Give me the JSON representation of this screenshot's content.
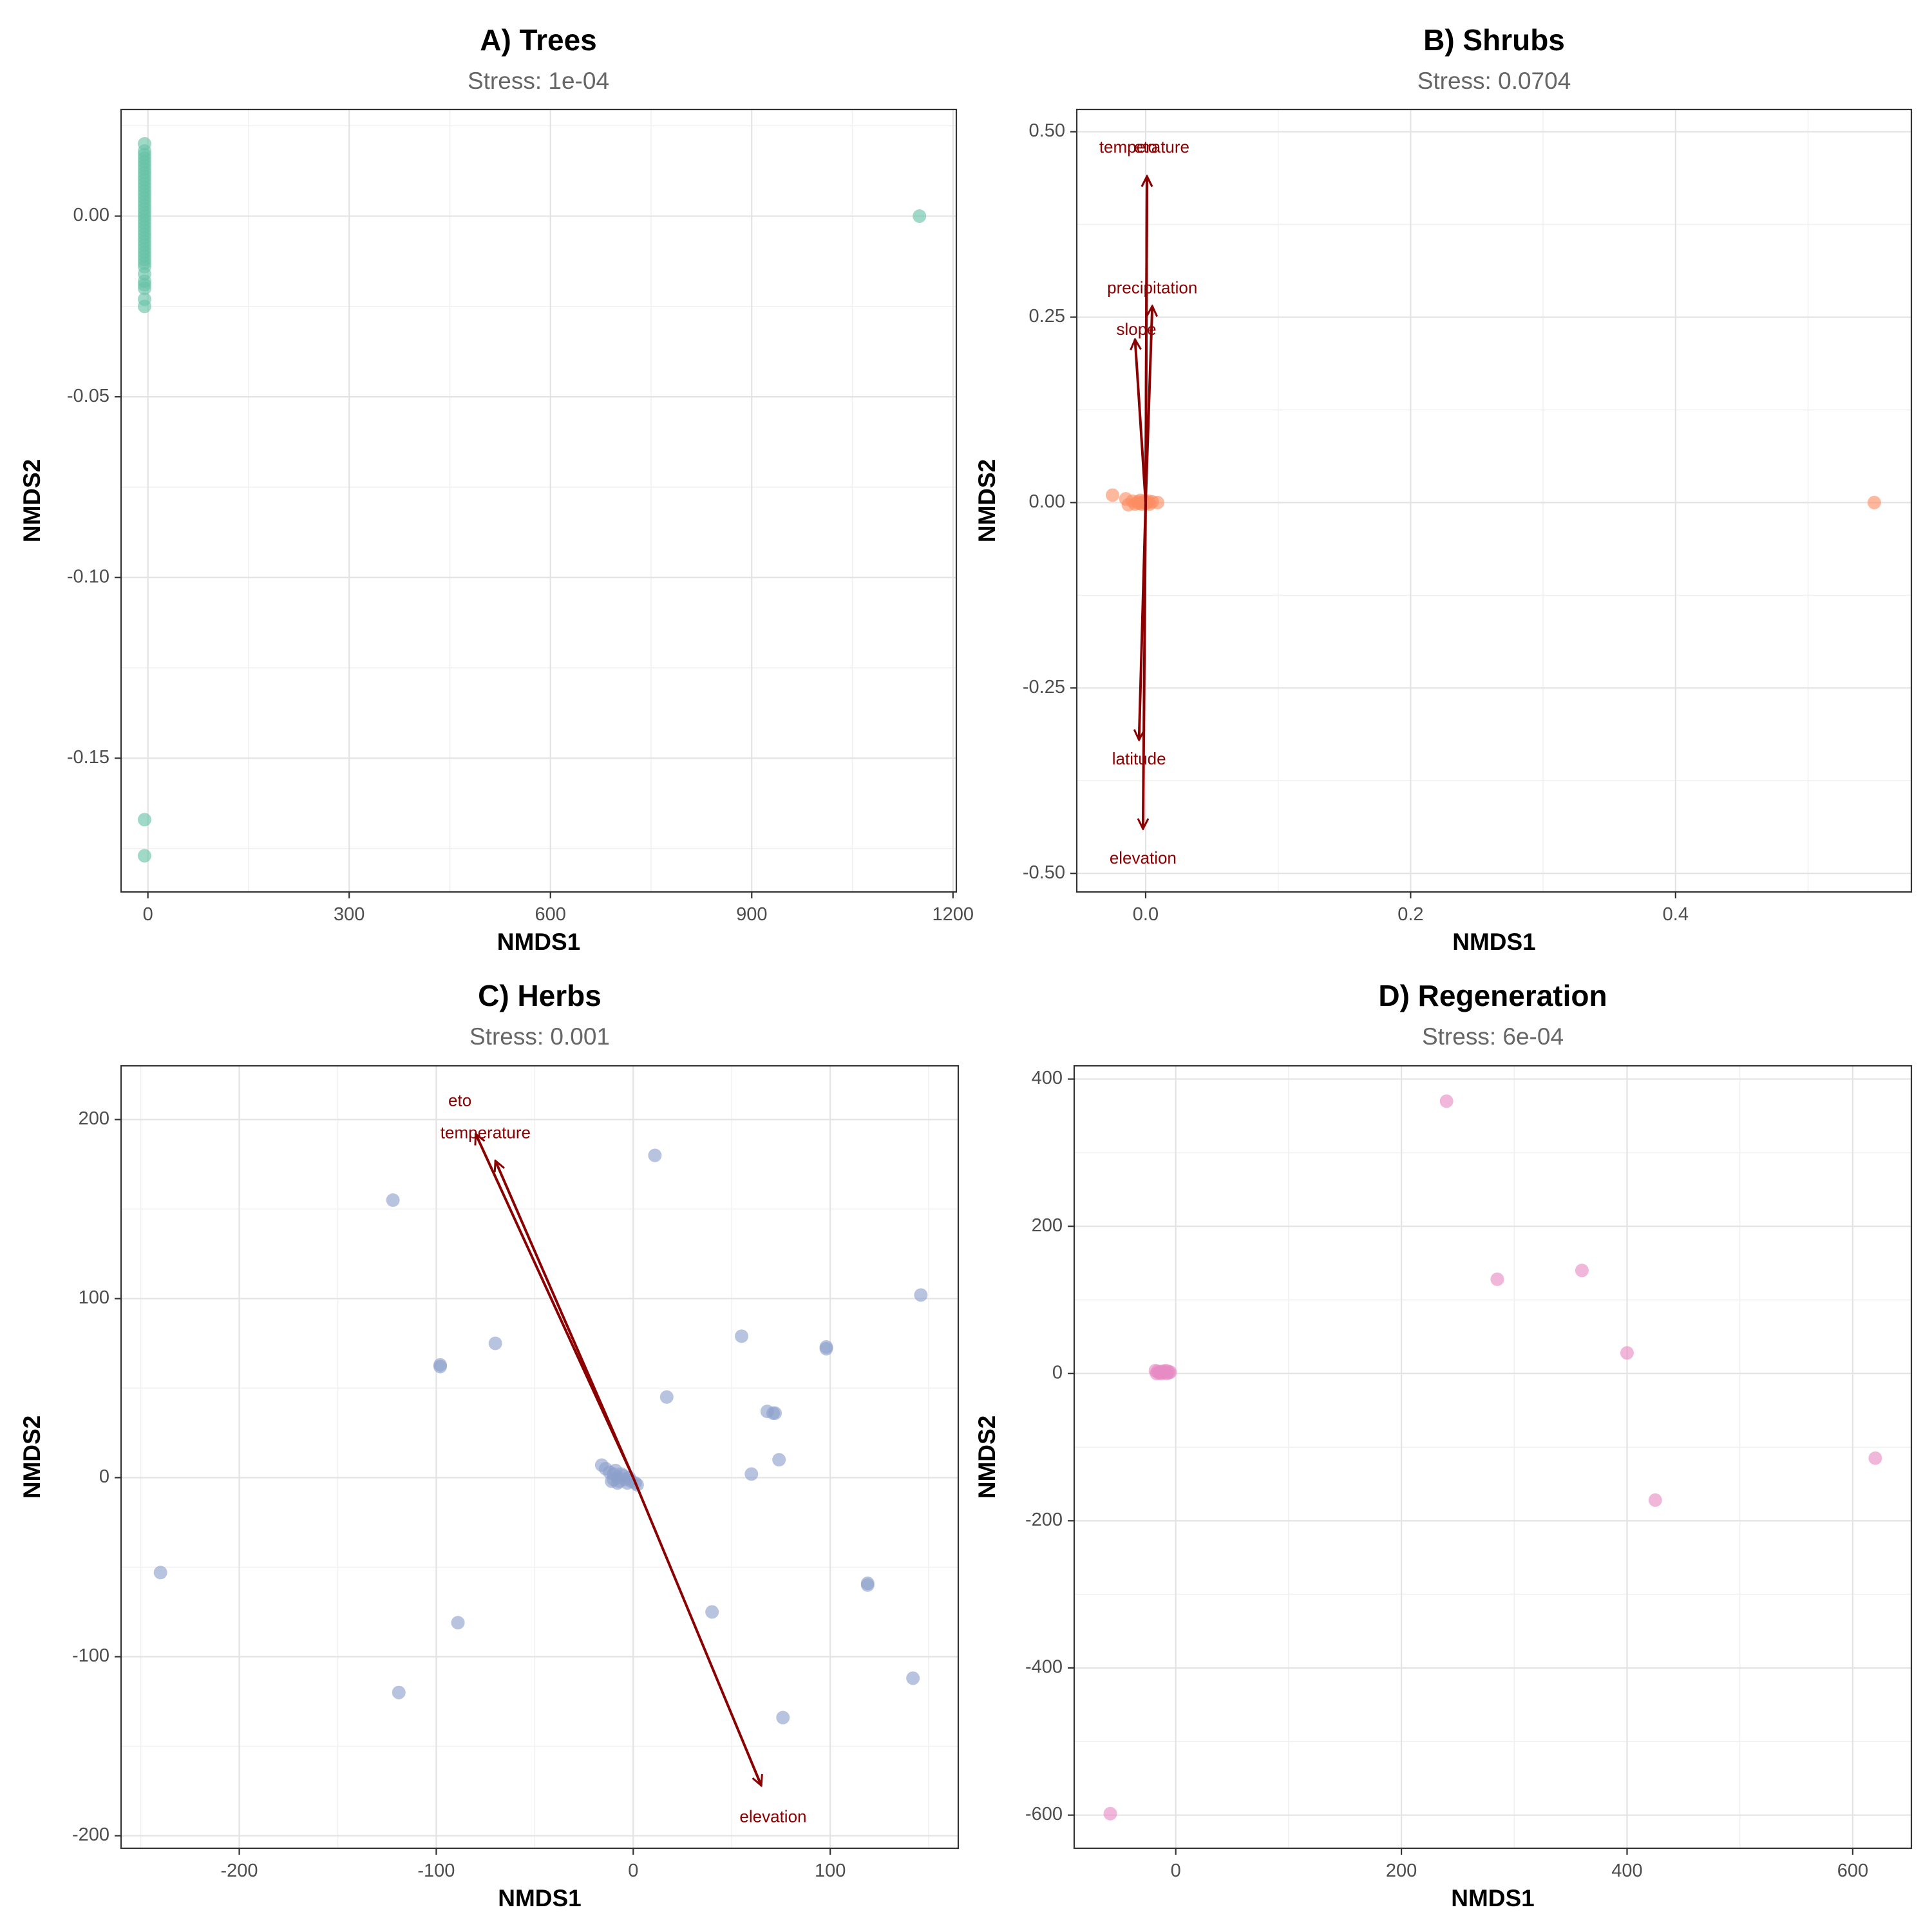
{
  "figure": {
    "panel_order": [
      "A",
      "B",
      "C",
      "D"
    ]
  },
  "chart_data": [
    {
      "type": "scatter",
      "id": "A",
      "title": "A) Trees",
      "subtitle": "Stress: 1e-04",
      "xlabel": "NMDS1",
      "ylabel": "NMDS2",
      "xlim": [
        -40,
        1205
      ],
      "ylim": [
        -0.187,
        0.0295
      ],
      "xticks": [
        0,
        300,
        600,
        900,
        1200
      ],
      "xtick_labels": [
        "0",
        "300",
        "600",
        "900",
        "1200"
      ],
      "yticks": [
        0.0,
        -0.05,
        -0.1,
        -0.15
      ],
      "ytick_labels": [
        "0.00",
        "-0.05",
        "-0.10",
        "-0.15"
      ],
      "point_color": "#66c2a5",
      "points": [
        [
          -5,
          0.02
        ],
        [
          -5,
          0.018
        ],
        [
          -5,
          0.017
        ],
        [
          -5,
          0.016
        ],
        [
          -5,
          0.015
        ],
        [
          -5,
          0.014
        ],
        [
          -5,
          0.013
        ],
        [
          -5,
          0.012
        ],
        [
          -5,
          0.011
        ],
        [
          -5,
          0.01
        ],
        [
          -5,
          0.009
        ],
        [
          -5,
          0.008
        ],
        [
          -5,
          0.007
        ],
        [
          -5,
          0.006
        ],
        [
          -5,
          0.005
        ],
        [
          -5,
          0.004
        ],
        [
          -5,
          0.003
        ],
        [
          -5,
          0.002
        ],
        [
          -5,
          0.001
        ],
        [
          -5,
          0.0
        ],
        [
          -5,
          -0.001
        ],
        [
          -5,
          -0.002
        ],
        [
          -5,
          -0.003
        ],
        [
          -5,
          -0.004
        ],
        [
          -5,
          -0.005
        ],
        [
          -5,
          -0.006
        ],
        [
          -5,
          -0.007
        ],
        [
          -5,
          -0.008
        ],
        [
          -5,
          -0.009
        ],
        [
          -5,
          -0.01
        ],
        [
          -5,
          -0.011
        ],
        [
          -5,
          -0.012
        ],
        [
          -5,
          -0.013
        ],
        [
          -5,
          -0.014
        ],
        [
          -5,
          -0.016
        ],
        [
          -5,
          -0.018
        ],
        [
          -5,
          -0.019
        ],
        [
          -5,
          -0.02
        ],
        [
          -5,
          -0.023
        ],
        [
          -5,
          -0.025
        ],
        [
          -5,
          -0.167
        ],
        [
          -5,
          -0.177
        ],
        [
          1150,
          0.0
        ]
      ],
      "vectors": []
    },
    {
      "type": "scatter",
      "id": "B",
      "title": "B) Shrubs",
      "subtitle": "Stress: 0.0704",
      "xlabel": "NMDS1",
      "ylabel": "NMDS2",
      "xlim": [
        -0.052,
        0.578
      ],
      "ylim": [
        -0.525,
        0.53
      ],
      "xticks": [
        0.0,
        0.2,
        0.4
      ],
      "xtick_labels": [
        "0.0",
        "0.2",
        "0.4"
      ],
      "yticks": [
        0.5,
        0.25,
        0.0,
        -0.25,
        -0.5
      ],
      "ytick_labels": [
        "0.50",
        "0.25",
        "0.00",
        "-0.25",
        "-0.50"
      ],
      "point_color": "#fc8d62",
      "points": [
        [
          -0.025,
          0.01
        ],
        [
          -0.015,
          0.005
        ],
        [
          -0.013,
          -0.003
        ],
        [
          -0.01,
          0.002
        ],
        [
          -0.008,
          -0.002
        ],
        [
          -0.006,
          0.001
        ],
        [
          -0.005,
          -0.001
        ],
        [
          -0.004,
          0.003
        ],
        [
          -0.003,
          -0.002
        ],
        [
          -0.002,
          0.0
        ],
        [
          -0.001,
          0.002
        ],
        [
          0.0,
          -0.001
        ],
        [
          0.001,
          0.0
        ],
        [
          0.002,
          0.002
        ],
        [
          0.003,
          -0.002
        ],
        [
          0.005,
          0.001
        ],
        [
          0.009,
          0.0
        ],
        [
          0.55,
          0.0
        ]
      ],
      "vector_color": "#8b0000",
      "vectors": [
        {
          "label": "eto",
          "x": 0.001,
          "y": 0.44,
          "lx": 0.0,
          "ly": 0.478
        },
        {
          "label": "temperature",
          "x": 0.001,
          "y": 0.44,
          "lx": -0.001,
          "ly": 0.478
        },
        {
          "label": "precipitation",
          "x": 0.005,
          "y": 0.265,
          "lx": 0.005,
          "ly": 0.288
        },
        {
          "label": "slope",
          "x": -0.008,
          "y": 0.22,
          "lx": -0.007,
          "ly": 0.232
        },
        {
          "label": "latitude",
          "x": -0.005,
          "y": -0.32,
          "lx": -0.005,
          "ly": -0.347
        },
        {
          "label": "elevation",
          "x": -0.002,
          "y": -0.44,
          "lx": -0.002,
          "ly": -0.481
        }
      ]
    },
    {
      "type": "scatter",
      "id": "C",
      "title": "C) Herbs",
      "subtitle": "Stress: 0.001",
      "xlabel": "NMDS1",
      "ylabel": "NMDS2",
      "xlim": [
        -260,
        165
      ],
      "ylim": [
        -207,
        230
      ],
      "xticks": [
        -200,
        -100,
        0,
        100
      ],
      "xtick_labels": [
        "-200",
        "-100",
        "0",
        "100"
      ],
      "yticks": [
        200,
        100,
        0,
        -100,
        -200
      ],
      "ytick_labels": [
        "200",
        "100",
        "0",
        "-100",
        "-200"
      ],
      "point_color": "#8da0cb",
      "points": [
        [
          11,
          180
        ],
        [
          -122,
          155
        ],
        [
          146,
          102
        ],
        [
          -98,
          63
        ],
        [
          -98,
          62
        ],
        [
          -70,
          75
        ],
        [
          55,
          79
        ],
        [
          98,
          73
        ],
        [
          98,
          72
        ],
        [
          17,
          45
        ],
        [
          68,
          37
        ],
        [
          71,
          36
        ],
        [
          72,
          36
        ],
        [
          74,
          10
        ],
        [
          60,
          2
        ],
        [
          -16,
          7
        ],
        [
          -14,
          5
        ],
        [
          -12,
          3
        ],
        [
          -10,
          2
        ],
        [
          -9,
          4
        ],
        [
          -8,
          0
        ],
        [
          -7,
          -2
        ],
        [
          -6,
          2
        ],
        [
          -5,
          1
        ],
        [
          -4,
          -1
        ],
        [
          -3,
          -3
        ],
        [
          -2,
          0
        ],
        [
          -1,
          -2
        ],
        [
          1,
          -3
        ],
        [
          2,
          -4
        ],
        [
          -10,
          -1
        ],
        [
          -11,
          -2
        ],
        [
          -8,
          -3
        ],
        [
          -240,
          -53
        ],
        [
          -89,
          -81
        ],
        [
          40,
          -75
        ],
        [
          119,
          -59
        ],
        [
          119,
          -60
        ],
        [
          -119,
          -120
        ],
        [
          76,
          -134
        ],
        [
          142,
          -112
        ]
      ],
      "vector_color": "#8b0000",
      "vectors": [
        {
          "label": "eto",
          "x": -80,
          "y": 192,
          "lx": -88,
          "ly": 210
        },
        {
          "label": "temperature",
          "x": -70,
          "y": 177,
          "lx": -75,
          "ly": 192
        },
        {
          "label": "elevation",
          "x": 65,
          "y": -172,
          "lx": 71,
          "ly": -190
        }
      ]
    },
    {
      "type": "scatter",
      "id": "D",
      "title": "D) Regeneration",
      "subtitle": "Stress: 6e-04",
      "xlabel": "NMDS1",
      "ylabel": "NMDS2",
      "xlim": [
        -90,
        652
      ],
      "ylim": [
        -645,
        418
      ],
      "xticks": [
        0,
        200,
        400,
        600
      ],
      "xtick_labels": [
        "0",
        "200",
        "400",
        "600"
      ],
      "yticks": [
        400,
        200,
        0,
        -200,
        -400,
        -600
      ],
      "ytick_labels": [
        "400",
        "200",
        "0",
        "-200",
        "-400",
        "-600"
      ],
      "point_color": "#e78ac3",
      "points": [
        [
          240,
          370
        ],
        [
          285,
          128
        ],
        [
          360,
          140
        ],
        [
          400,
          28
        ],
        [
          -18,
          4
        ],
        [
          -17,
          0
        ],
        [
          -16,
          3
        ],
        [
          -15,
          1
        ],
        [
          -14,
          2
        ],
        [
          -13,
          0
        ],
        [
          -12,
          3
        ],
        [
          -11,
          1
        ],
        [
          -10,
          2
        ],
        [
          -9,
          4
        ],
        [
          -8,
          0
        ],
        [
          -7,
          3
        ],
        [
          -6,
          1
        ],
        [
          -5,
          2
        ],
        [
          425,
          -172
        ],
        [
          620,
          -115
        ],
        [
          -58,
          -598
        ]
      ],
      "vectors": []
    }
  ]
}
